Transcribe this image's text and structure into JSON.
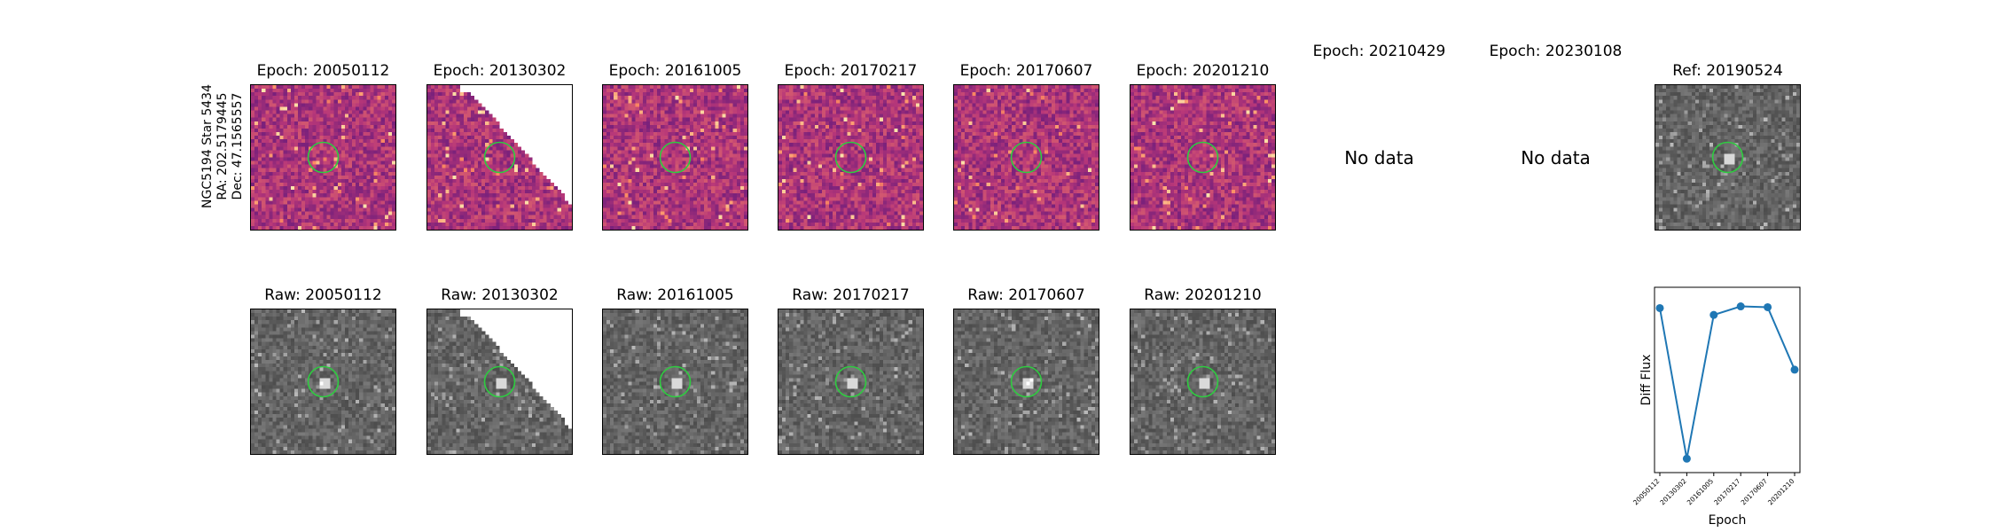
{
  "figure": {
    "target_label": [
      "NGC5194 Star 5434",
      "RA: 202.5179445",
      "Dec: 47.1565557"
    ],
    "no_data_text": "No data",
    "diff_row": [
      {
        "title": "Epoch: 20050112",
        "has_data": true,
        "colormap": "magma"
      },
      {
        "title": "Epoch: 20130302",
        "has_data": true,
        "colormap": "magma",
        "mask": "diagonal"
      },
      {
        "title": "Epoch: 20161005",
        "has_data": true,
        "colormap": "magma"
      },
      {
        "title": "Epoch: 20170217",
        "has_data": true,
        "colormap": "magma"
      },
      {
        "title": "Epoch: 20170607",
        "has_data": true,
        "colormap": "magma"
      },
      {
        "title": "Epoch: 20201210",
        "has_data": true,
        "colormap": "magma"
      },
      {
        "title": "Epoch: 20210429",
        "has_data": false
      },
      {
        "title": "Epoch: 20230108",
        "has_data": false
      },
      {
        "title": "Ref: 20190524",
        "has_data": true,
        "colormap": "gray"
      }
    ],
    "raw_row": [
      {
        "title": "Raw: 20050112",
        "colormap": "gray"
      },
      {
        "title": "Raw: 20130302",
        "colormap": "gray",
        "mask": "diagonal"
      },
      {
        "title": "Raw: 20161005",
        "colormap": "gray"
      },
      {
        "title": "Raw: 20170217",
        "colormap": "gray"
      },
      {
        "title": "Raw: 20170607",
        "colormap": "gray"
      },
      {
        "title": "Raw: 20201210",
        "colormap": "gray"
      }
    ],
    "aperture_color": "#2ecc40"
  },
  "chart_data": {
    "type": "line",
    "title": "",
    "xlabel": "Epoch",
    "ylabel": "Diff Flux",
    "categories": [
      "20050112",
      "20130302",
      "20161005",
      "20170217",
      "20170607",
      "20201210"
    ],
    "values": [
      0.92,
      0.04,
      0.88,
      0.93,
      0.925,
      0.56
    ],
    "ylim": [
      0,
      1
    ],
    "y_ticks_shown": false,
    "grid": false,
    "line_color": "#1f77b4"
  }
}
